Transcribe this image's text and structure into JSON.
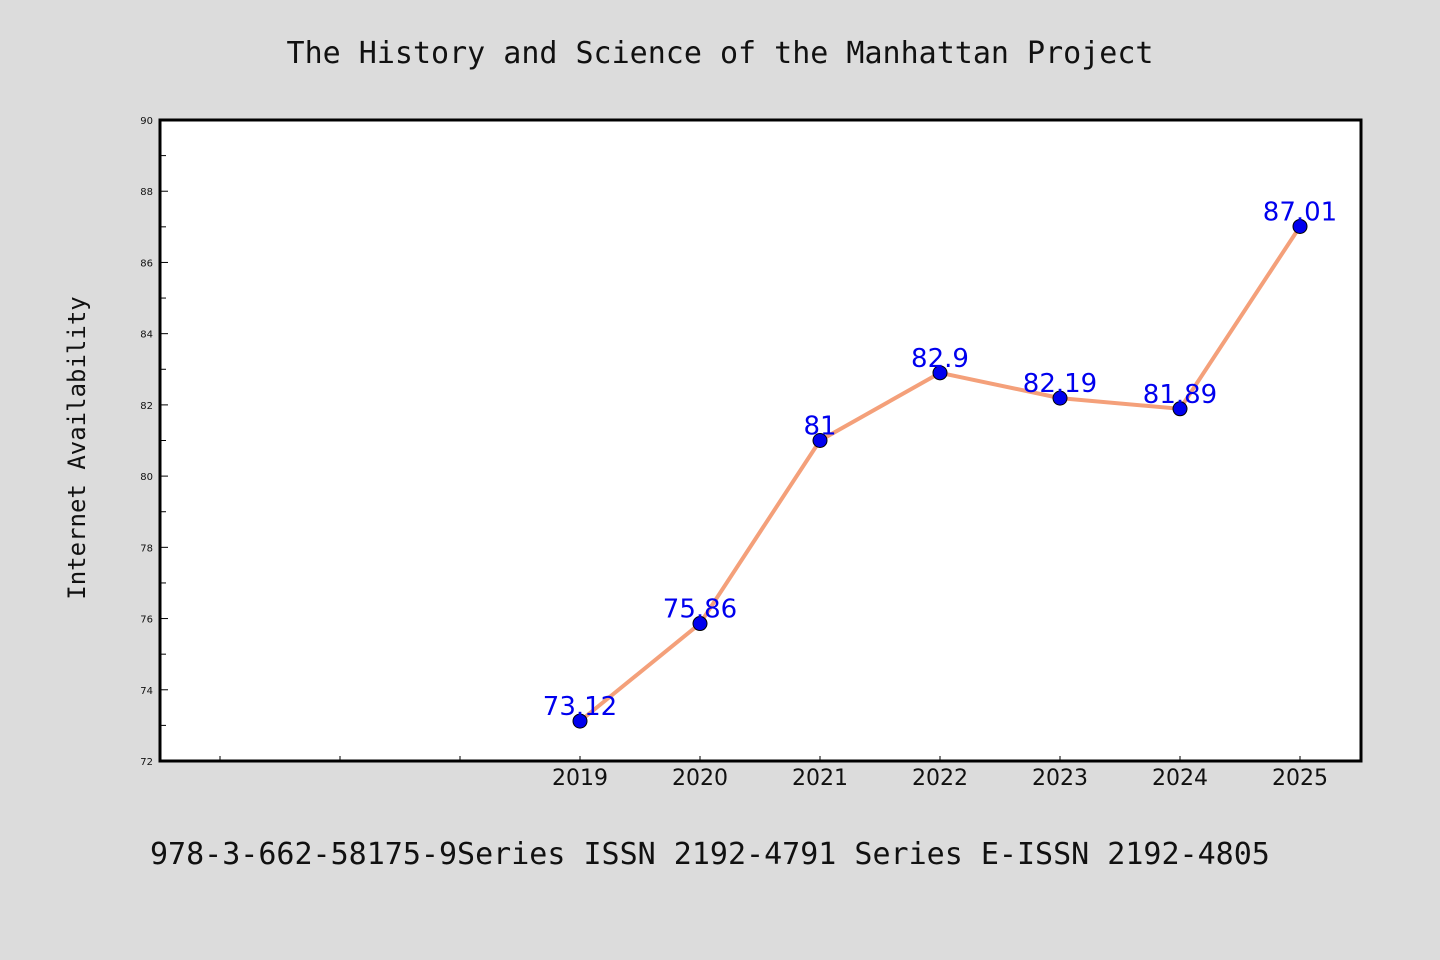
{
  "chart_data": {
    "type": "line",
    "title": "The History and Science of the Manhattan Project",
    "xlabel": "",
    "ylabel": "Internet Availability",
    "categories": [
      "2019",
      "2020",
      "2021",
      "2022",
      "2023",
      "2024",
      "2025"
    ],
    "series": [
      {
        "values": [
          73.12,
          75.86,
          81,
          82.9,
          82.19,
          81.89,
          87.01
        ],
        "data_labels": [
          "73.12",
          "75.86",
          "81",
          "82.9",
          "82.19",
          "81.89",
          "87.01"
        ]
      }
    ],
    "ylim": [
      72,
      90
    ],
    "yticks": [
      "72",
      "74",
      "76",
      "78",
      "80",
      "82",
      "84",
      "86",
      "88",
      "90"
    ],
    "grid": false,
    "legend": "none",
    "colors": {
      "line": "#f4a07a",
      "marker": "#0000ee",
      "data_label": "#0000ee",
      "background": "#dcdcdc",
      "plot_background": "#ffffff"
    }
  },
  "footer": {
    "text": "978-3-662-58175-9Series ISSN 2192-4791 Series E-ISSN 2192-4805"
  }
}
